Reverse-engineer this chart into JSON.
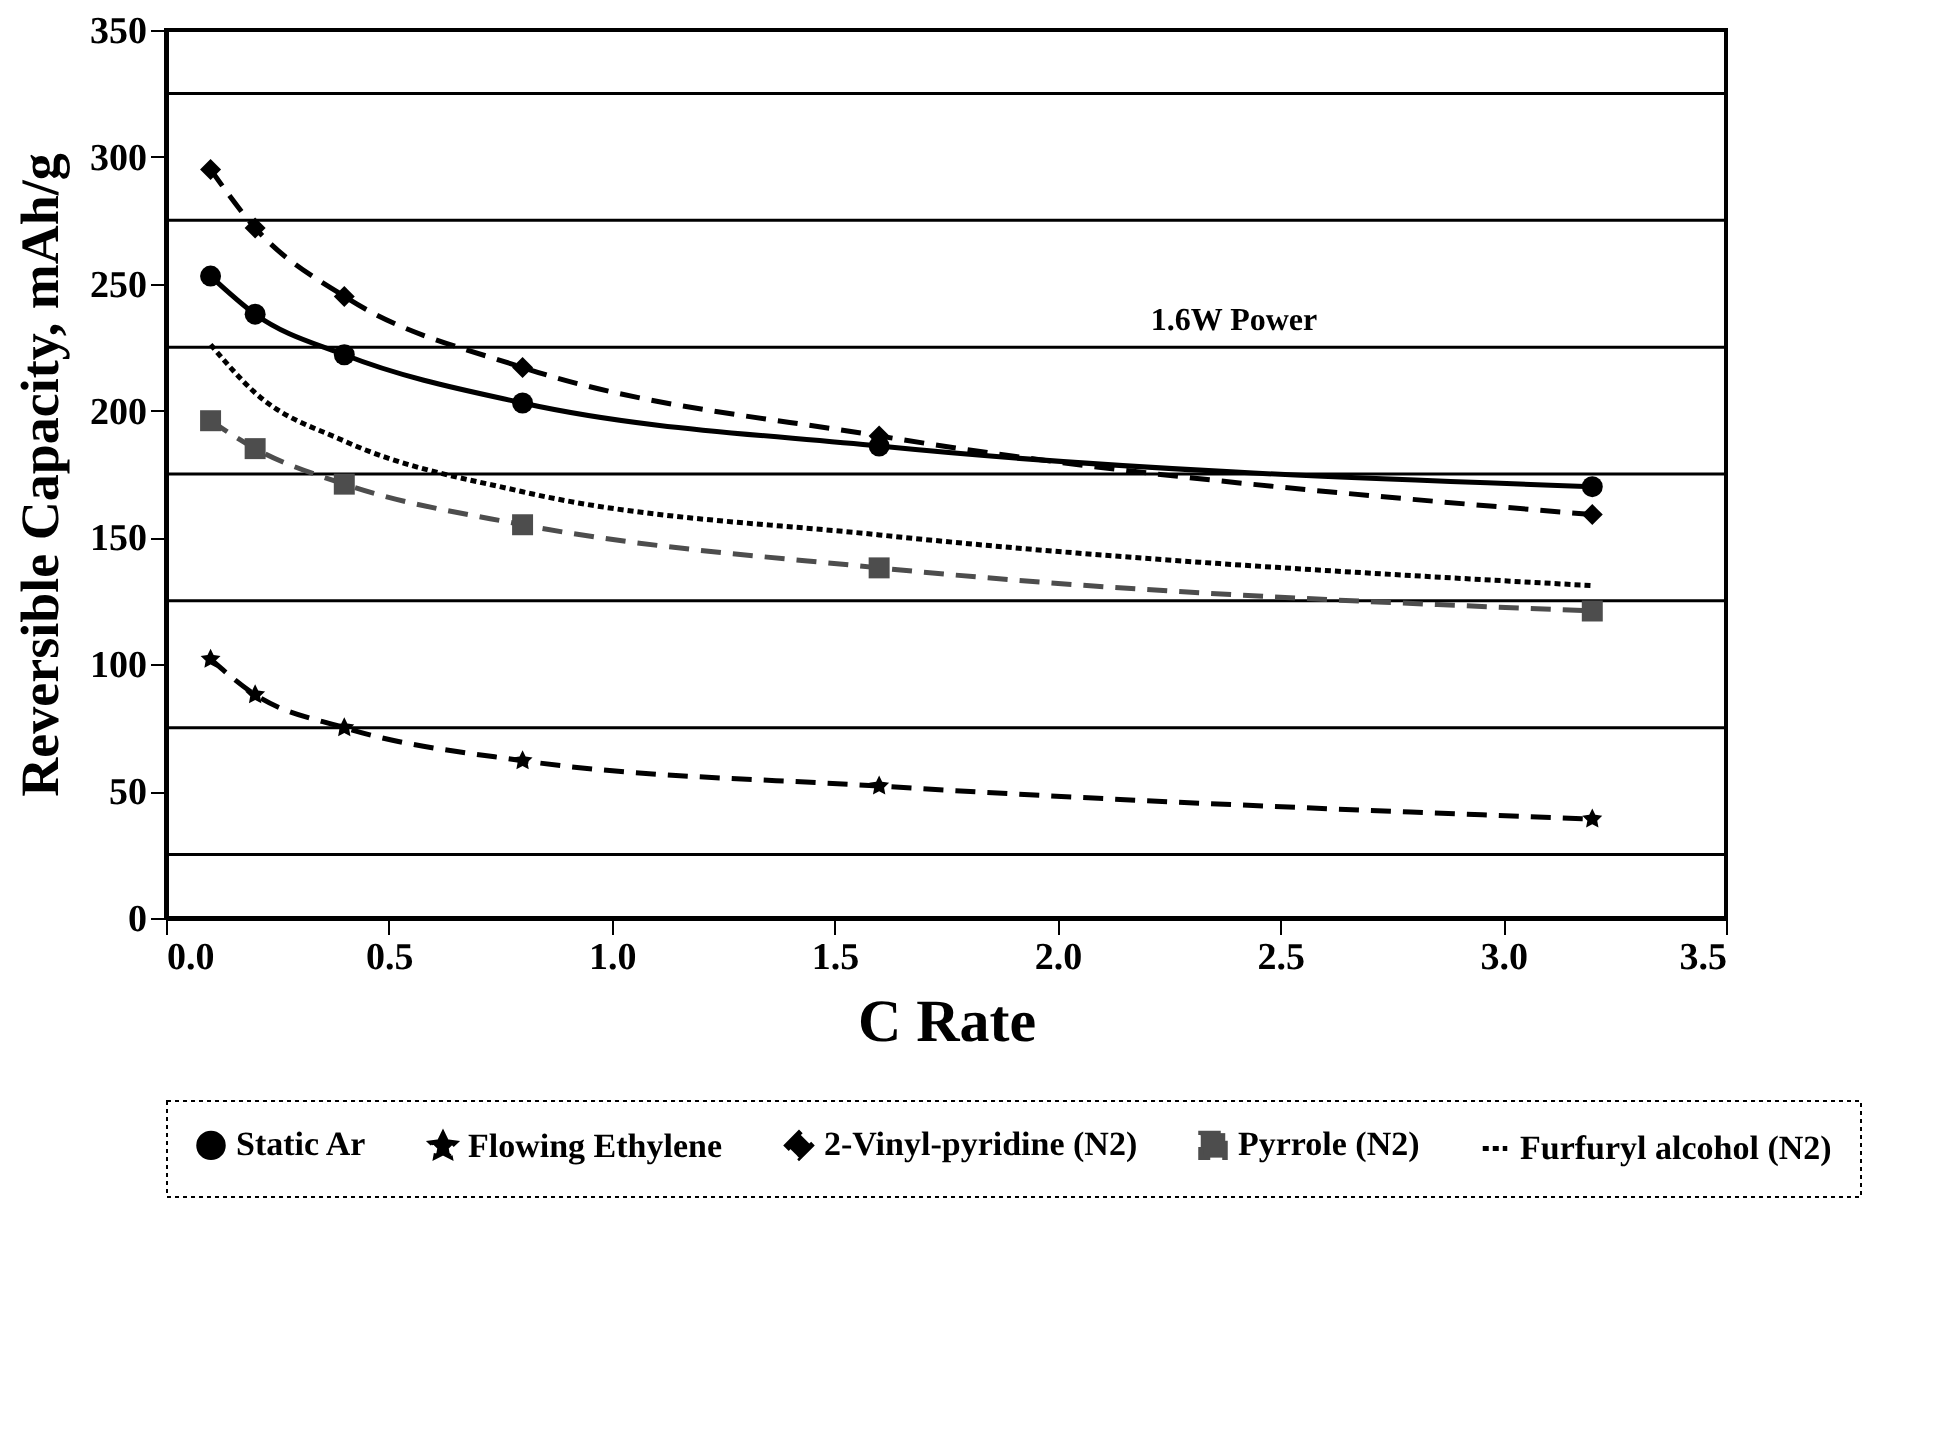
{
  "chart_data": {
    "type": "line",
    "xlabel": "C Rate",
    "ylabel": "Reversible Capacity, mAh/g",
    "annotations": [
      "1.6W Power"
    ],
    "xlim": [
      0,
      3.5
    ],
    "xticks": [
      {
        "value": 0,
        "label": "0.0"
      },
      {
        "value": 0.5,
        "label": "0.5"
      },
      {
        "value": 1,
        "label": "1.0"
      },
      {
        "value": 1.5,
        "label": "1.5"
      },
      {
        "value": 2,
        "label": "2.0"
      },
      {
        "value": 2.5,
        "label": "2.5"
      },
      {
        "value": 3,
        "label": "3.0"
      },
      {
        "value": 3.5,
        "label": "3.5"
      }
    ],
    "ylim": [
      0,
      350
    ],
    "yticks": [
      0,
      50,
      100,
      150,
      200,
      250,
      300,
      350
    ],
    "grid": false,
    "legend": "bottom",
    "ref_lines": [
      {
        "axis": "y",
        "value": 25
      },
      {
        "axis": "y",
        "value": 75
      },
      {
        "axis": "y",
        "value": 125
      },
      {
        "axis": "y",
        "value": 175
      },
      {
        "axis": "y",
        "value": 225
      },
      {
        "axis": "y",
        "value": 275
      },
      {
        "axis": "y",
        "value": 325
      }
    ],
    "x": [
      0.1,
      0.2,
      0.4,
      0.8,
      1.6,
      3.2
    ],
    "series": [
      {
        "name": "Static Ar",
        "color": "#000000",
        "marker": "circle",
        "line_style": "solid",
        "values": [
          253,
          238,
          222,
          203,
          186,
          170
        ]
      },
      {
        "name": "Flowing Ethylene",
        "color": "#000000",
        "marker": "star",
        "line_style": "dashed",
        "values": [
          102,
          88,
          75,
          62,
          52,
          39
        ]
      },
      {
        "name": "2-Vinyl-pyridine (N2)",
        "color": "#000000",
        "marker": "diamond",
        "line_style": "dashed",
        "values": [
          295,
          272,
          245,
          217,
          190,
          159
        ]
      },
      {
        "name": "Pyrrole (N2)",
        "color": "#4d4d4d",
        "marker": "square",
        "line_style": "dashed",
        "values": [
          196,
          185,
          171,
          155,
          138,
          121
        ]
      },
      {
        "name": "Furfuryl alcohol (N2)",
        "color": "#000000",
        "marker": "none",
        "line_style": "dotted",
        "values": [
          226,
          207,
          188,
          168,
          151,
          131
        ]
      }
    ]
  }
}
